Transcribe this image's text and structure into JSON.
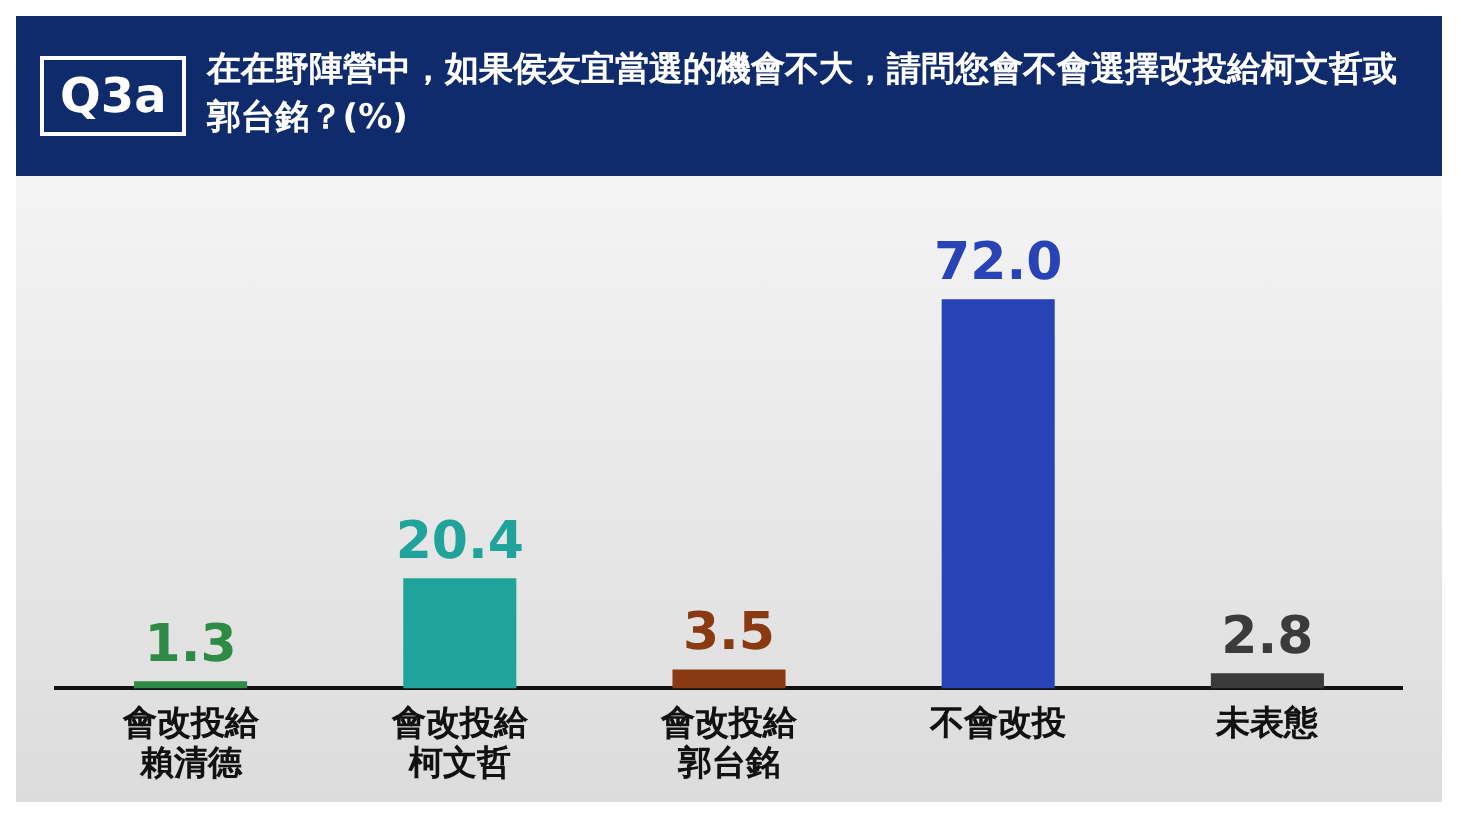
{
  "chart_data": {
    "type": "bar",
    "subtitle": "Q3a",
    "title": "在在野陣營中，如果侯友宜當選的機會不大，請問您會不會選擇改投給柯文哲或郭台銘？(%)",
    "categories": [
      "會改投給賴清德",
      "會改投給柯文哲",
      "會改投給郭台銘",
      "不會改投",
      "未表態"
    ],
    "values": [
      1.3,
      20.4,
      3.5,
      72.0,
      2.8
    ],
    "value_labels": [
      "1.3",
      "20.4",
      "3.5",
      "72.0",
      "2.8"
    ],
    "colors": [
      "#2e8b46",
      "#1fa39a",
      "#8a3a12",
      "#2743b5",
      "#3b3b3b"
    ],
    "grid": false,
    "legend": false
  }
}
